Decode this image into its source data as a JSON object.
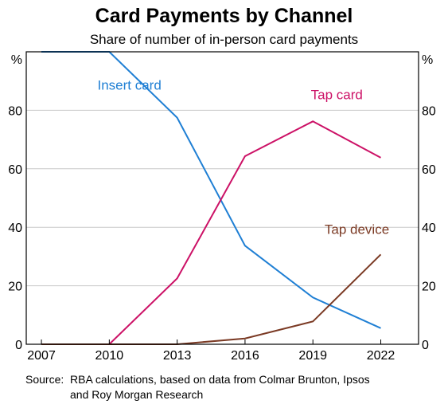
{
  "chart_data": {
    "type": "line",
    "title": "Card Payments by Channel",
    "subtitle": "Share of number of in-person card payments",
    "y_unit_left": "%",
    "y_unit_right": "%",
    "ylim": [
      0,
      100
    ],
    "yticks": [
      0,
      20,
      40,
      60,
      80
    ],
    "xlim": [
      2006.33,
      2023.67
    ],
    "xticks": [
      2007,
      2010,
      2013,
      2016,
      2019,
      2022
    ],
    "grid": true,
    "series": [
      {
        "name": "Insert card",
        "color": "#1f7fd4",
        "x": [
          2007,
          2010,
          2013,
          2016,
          2019,
          2022
        ],
        "values": [
          100,
          100,
          77.5,
          33.7,
          16,
          5.5
        ]
      },
      {
        "name": "Tap card",
        "color": "#cc1166",
        "x": [
          2007,
          2010,
          2013,
          2016,
          2019,
          2022
        ],
        "values": [
          0,
          0,
          22.5,
          64.3,
          76.2,
          63.8
        ]
      },
      {
        "name": "Tap device",
        "color": "#7b3a24",
        "x": [
          2007,
          2010,
          2013,
          2016,
          2019,
          2022
        ],
        "values": [
          0,
          0,
          0,
          2,
          7.8,
          30.7
        ]
      }
    ],
    "source_label": "Source:",
    "source_lines": [
      "RBA calculations, based on data from Colmar Brunton, Ipsos",
      "and Roy Morgan Research"
    ]
  }
}
